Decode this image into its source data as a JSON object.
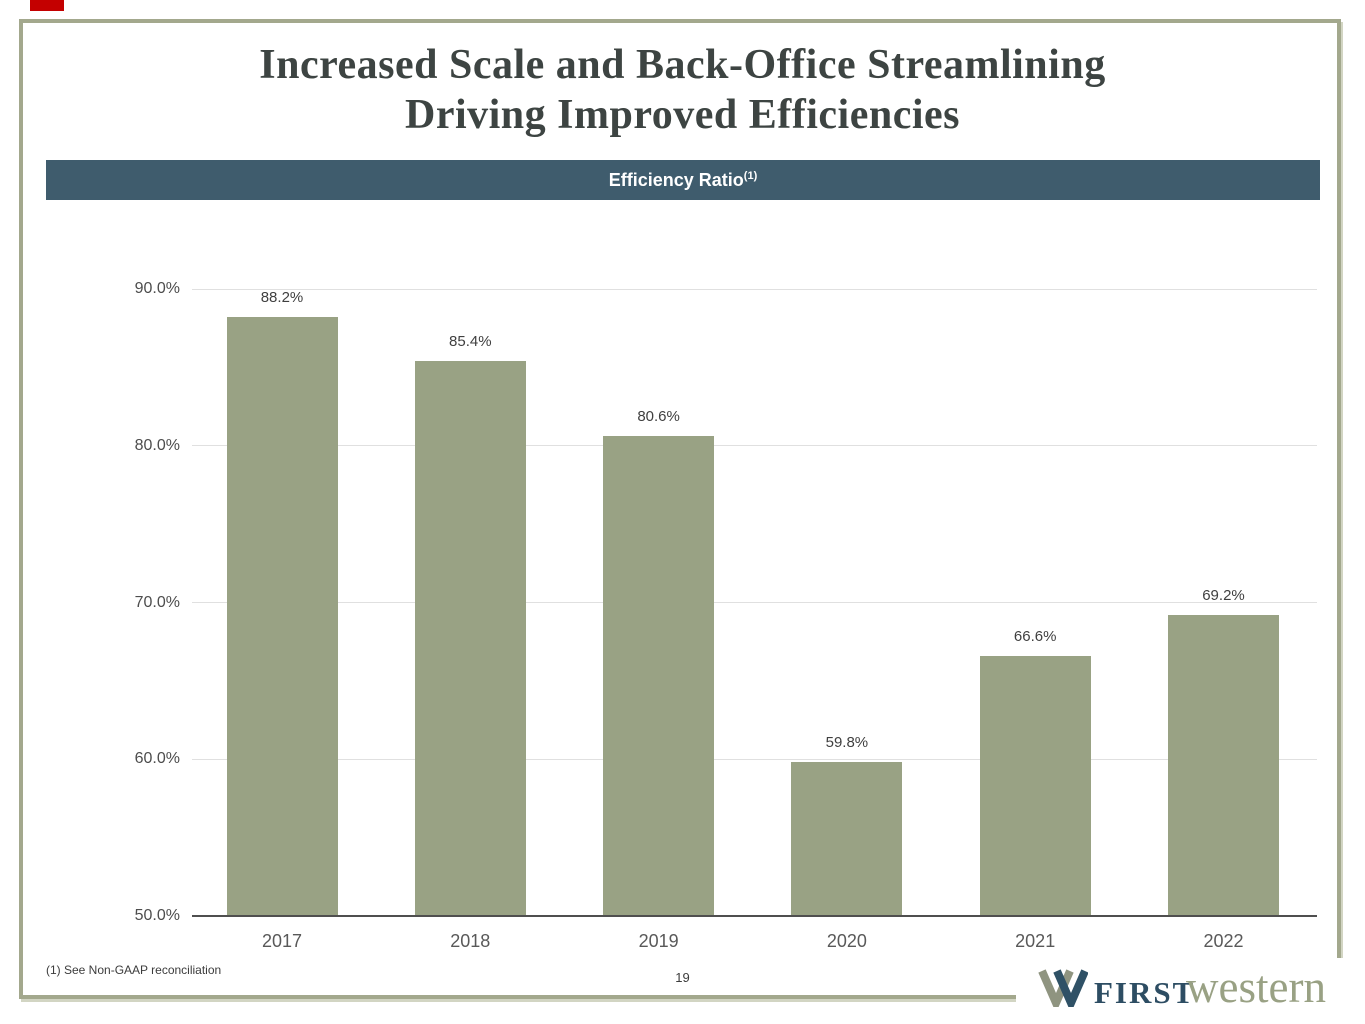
{
  "slide": {
    "title_line1": "Increased Scale and Back-Office Streamlining",
    "title_line2": "Driving Improved Efficiencies",
    "banner": {
      "label": "Efficiency Ratio",
      "superscript": "(1)",
      "background_color": "#3f5c6d",
      "text_color": "#ffffff"
    },
    "footnote": "(1) See Non-GAAP reconciliation",
    "page_number": "19",
    "border_color": "#a3a88d",
    "logo": {
      "mark": "first-western-w-mark",
      "word1": "FIRST",
      "word2": "western",
      "word1_color": "#2d4d63",
      "word2_color": "#99a184",
      "mark_olive_color": "#8f9480",
      "mark_blue_color": "#2f5166"
    }
  },
  "chart_data": {
    "type": "bar",
    "title": "Efficiency Ratio",
    "categories": [
      "2017",
      "2018",
      "2019",
      "2020",
      "2021",
      "2022"
    ],
    "values": [
      88.2,
      85.4,
      80.6,
      59.8,
      66.6,
      69.2
    ],
    "value_labels": [
      "88.2%",
      "85.4%",
      "80.6%",
      "59.8%",
      "66.6%",
      "69.2%"
    ],
    "ylim": [
      50,
      90
    ],
    "yticks": [
      50,
      60,
      70,
      80,
      90
    ],
    "ytick_labels": [
      "50.0%",
      "60.0%",
      "70.0%",
      "80.0%",
      "90.0%"
    ],
    "bar_color": "#99a284",
    "grid": true,
    "legend": false,
    "xlabel": "",
    "ylabel": ""
  }
}
